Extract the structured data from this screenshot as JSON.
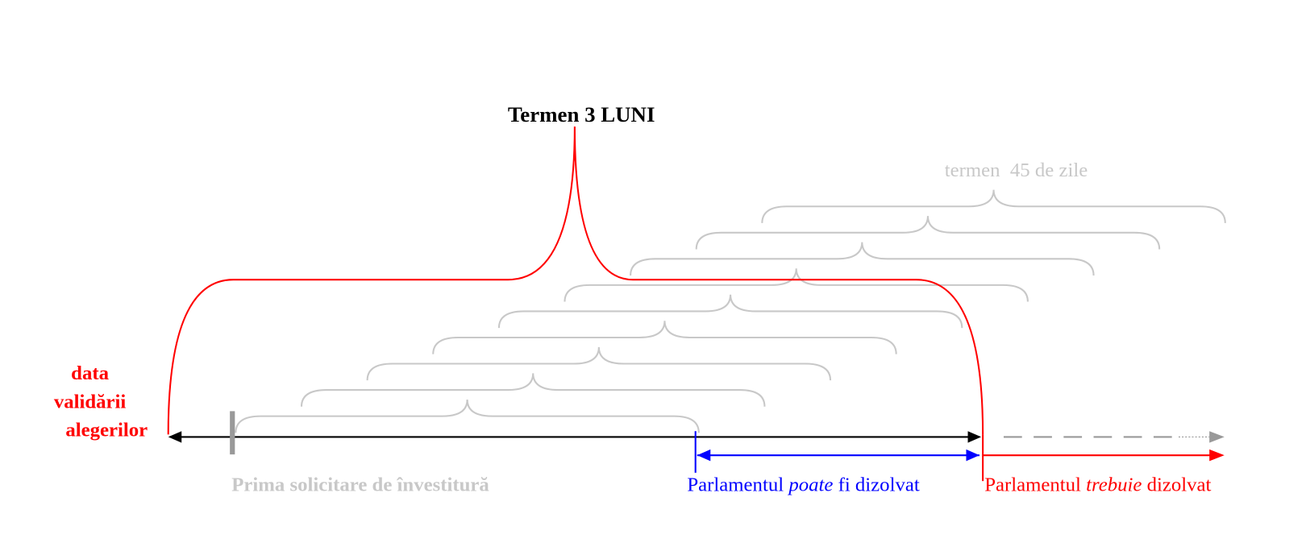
{
  "title": "Termen 3 LUNI",
  "brace_label": "termen  45 de zile",
  "start_label": [
    "data",
    "validării",
    "alegerilor"
  ],
  "first_request": "Prima solicitare de învestitură",
  "may_dissolve": [
    "Parlamentul ",
    "poate",
    " fi dizolvat"
  ],
  "must_dissolve": [
    "Parlamentul ",
    "trebuie",
    " dizolvat"
  ]
}
